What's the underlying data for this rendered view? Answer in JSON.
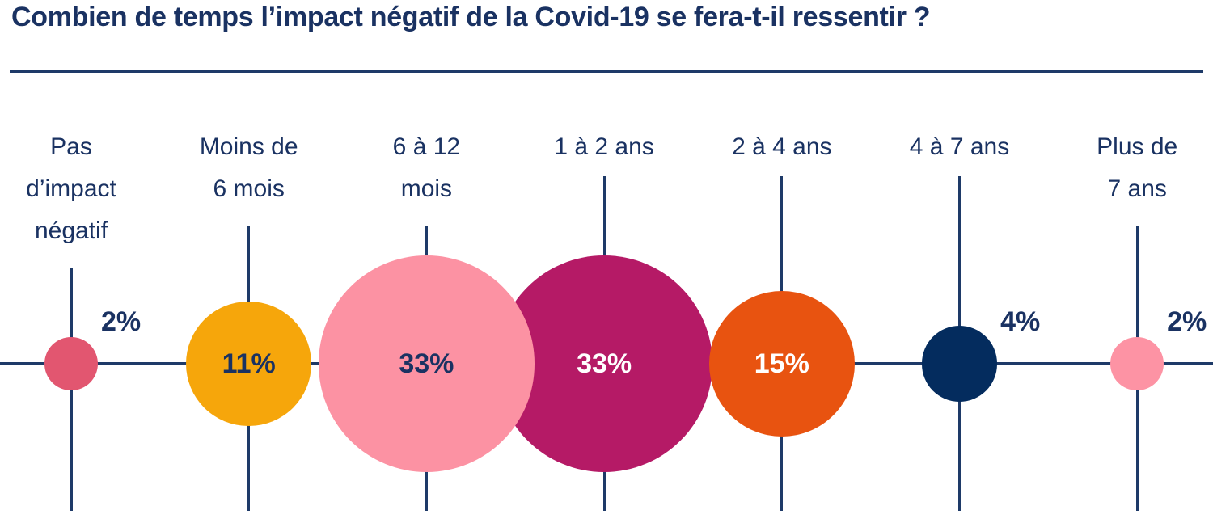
{
  "title": "Combien de temps l’impact négatif de la Covid-19 se fera-t-il ressentir ?",
  "chart_data": {
    "type": "bubble",
    "title": "Combien de temps l’impact négatif de la Covid-19 se fera-t-il ressentir ?",
    "unit": "%",
    "xlabel": "",
    "ylabel": "",
    "grid": "off",
    "legend": "none",
    "axis_color": "#1e3a68",
    "text_color": "#1a3262",
    "background_color": "#ffffff",
    "layout": "bubbles centered on a horizontal axis, one tick line per category, bubble area proportional to value",
    "categories": [
      {
        "label": "Pas d’impact négatif",
        "label_lines": [
          "Pas",
          "d’impact",
          "négatif"
        ],
        "value": 2,
        "value_label": "2%",
        "bubble_color": "#e25670",
        "value_label_placement": "outside",
        "value_label_color": "#1a3262"
      },
      {
        "label": "Moins de 6 mois",
        "label_lines": [
          "Moins de",
          "6 mois"
        ],
        "value": 11,
        "value_label": "11%",
        "bubble_color": "#f6a60b",
        "value_label_placement": "inside",
        "value_label_color": "#1a3262"
      },
      {
        "label": "6 à 12 mois",
        "label_lines": [
          "6 à 12",
          "mois"
        ],
        "value": 33,
        "value_label": "33%",
        "bubble_color": "#fc92a3",
        "value_label_placement": "inside",
        "value_label_color": "#1a3262"
      },
      {
        "label": "1 à 2 ans",
        "label_lines": [
          "1 à 2 ans"
        ],
        "value": 33,
        "value_label": "33%",
        "bubble_color": "#b51a66",
        "value_label_placement": "inside",
        "value_label_color": "#ffffff"
      },
      {
        "label": "2 à 4 ans",
        "label_lines": [
          "2 à 4 ans"
        ],
        "value": 15,
        "value_label": "15%",
        "bubble_color": "#e85310",
        "value_label_placement": "inside",
        "value_label_color": "#ffffff"
      },
      {
        "label": "4 à 7 ans",
        "label_lines": [
          "4 à 7 ans"
        ],
        "value": 4,
        "value_label": "4%",
        "bubble_color": "#042c5e",
        "value_label_placement": "outside",
        "value_label_color": "#1a3262"
      },
      {
        "label": "Plus de 7 ans",
        "label_lines": [
          "Plus de",
          "7 ans"
        ],
        "value": 2,
        "value_label": "2%",
        "bubble_color": "#fd93a4",
        "value_label_placement": "outside",
        "value_label_color": "#1a3262"
      }
    ]
  }
}
